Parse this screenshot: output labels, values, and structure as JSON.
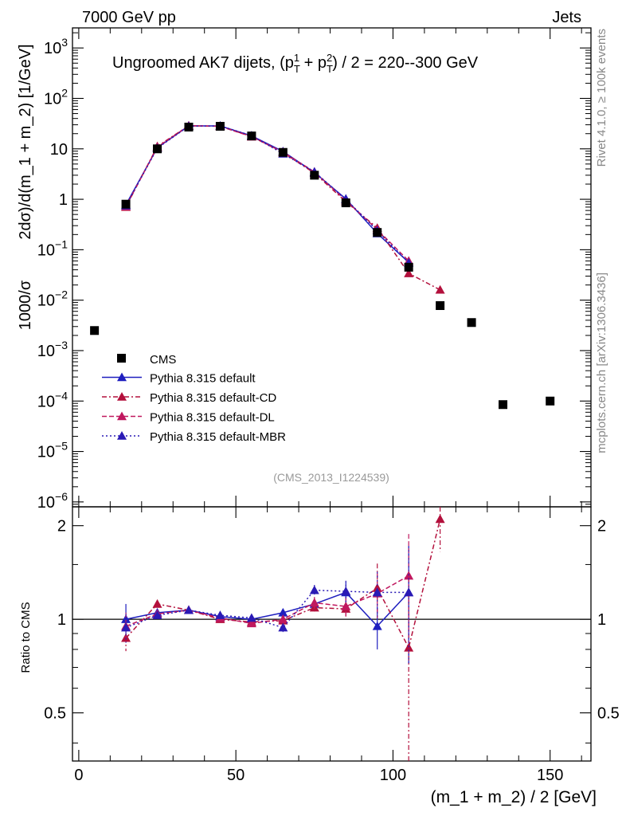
{
  "header": {
    "left_label": "7000 GeV pp",
    "right_label": "Jets"
  },
  "side_labels": {
    "rivet": "Rivet 4.1.0, ≥ 100k events",
    "mcplots": "mcplots.cern.ch [arXiv:1306.3436]"
  },
  "chart_data": {
    "type": "scatter",
    "title": "Ungroomed AK7 dijets, (p_T^1 + p_T^2) / 2 = 220--300 GeV",
    "title_parts": {
      "prefix": "Ungroomed AK7 dijets, (p",
      "sub1": "T",
      "sup1": "1",
      "plus": " + p",
      "sub2": "T",
      "sup2": "2",
      "suffix": ") / 2 = 220--300 GeV"
    },
    "analysis_id": "(CMS_2013_I1224539)",
    "ylabel": "1000/σ   2dσ)/d(m_1 + m_2) [1/GeV]",
    "ylabel_parts": {
      "left": "1000/σ",
      "right": "2dσ)/d(m_1 + m_2) [1/GeV]"
    },
    "xlabel": "(m_1 + m_2) / 2 [GeV]",
    "ratio_ylabel": "Ratio to CMS",
    "xlim": [
      -2,
      163
    ],
    "ylim": [
      8e-07,
      2500
    ],
    "ratio_ylim": [
      0.35,
      2.3
    ],
    "x_ticks": [
      "0",
      "50",
      "100",
      "150"
    ],
    "y_ticks": [
      "10^-6",
      "10^-5",
      "10^-4",
      "10^-3",
      "10^-2",
      "10^-1",
      "1",
      "10",
      "10^2",
      "10^3"
    ],
    "ratio_ticks": [
      "0.5",
      "1",
      "2"
    ],
    "legend_position": "lower-left",
    "reference": {
      "name": "CMS",
      "color": "#000000",
      "x": [
        5,
        15,
        25,
        35,
        45,
        55,
        65,
        75,
        85,
        95,
        105,
        115,
        125,
        135,
        150
      ],
      "y": [
        0.0025,
        0.8,
        10.0,
        27.0,
        28.0,
        18.0,
        8.5,
        3.0,
        0.85,
        0.22,
        0.045,
        0.0078,
        0.0036,
        8.5e-05,
        0.0001
      ]
    },
    "series": [
      {
        "name": "Pythia 8.315 default",
        "color": "#1f1fbf",
        "dash": "",
        "x": [
          15,
          25,
          35,
          45,
          55,
          65,
          75,
          85,
          95,
          105
        ],
        "y": [
          0.78,
          10.5,
          28.5,
          28.5,
          18.1,
          8.9,
          3.4,
          1.02,
          0.21,
          0.056
        ],
        "ratio": [
          1.0,
          1.05,
          1.07,
          1.02,
          1.0,
          1.05,
          1.12,
          1.22,
          0.95,
          1.22
        ],
        "ratio_err": [
          0.12,
          0.02,
          0.02,
          0.02,
          0.02,
          0.03,
          0.05,
          0.1,
          0.15,
          0.5
        ]
      },
      {
        "name": "Pythia 8.315 default-CD",
        "color": "#b3103c",
        "dash": "6,3,2,3",
        "x": [
          15,
          25,
          35,
          45,
          55,
          65,
          75,
          85,
          95,
          105,
          115
        ],
        "y": [
          0.7,
          11.2,
          28.8,
          28.0,
          17.6,
          8.4,
          3.3,
          0.9,
          0.27,
          0.034,
          0.016
        ],
        "ratio": [
          0.87,
          1.12,
          1.07,
          1.0,
          0.98,
          0.99,
          1.09,
          1.08,
          1.26,
          0.81,
          2.1
        ],
        "ratio_err": [
          0.08,
          0.03,
          0.02,
          0.02,
          0.02,
          0.03,
          0.04,
          0.06,
          0.25,
          0.55,
          0.45
        ]
      },
      {
        "name": "Pythia 8.315 default-DL",
        "color": "#c0185f",
        "dash": "6,3",
        "x": [
          15,
          25,
          35,
          45,
          55,
          65,
          75,
          85,
          95,
          105
        ],
        "y": [
          0.72,
          10.8,
          28.8,
          28.0,
          17.4,
          8.6,
          3.5,
          0.95,
          0.25,
          0.06
        ],
        "ratio": [
          0.95,
          1.04,
          1.07,
          1.01,
          0.97,
          1.0,
          1.13,
          1.1,
          1.21,
          1.38
        ],
        "ratio_err": [
          0.1,
          0.02,
          0.02,
          0.02,
          0.02,
          0.03,
          0.05,
          0.08,
          0.2,
          0.5
        ]
      },
      {
        "name": "Pythia 8.315 default-MBR",
        "color": "#2a1ab5",
        "dash": "2,3",
        "x": [
          15,
          25,
          35,
          45,
          55,
          65,
          75,
          85,
          95,
          105
        ],
        "y": [
          0.75,
          10.3,
          28.2,
          28.5,
          18.3,
          8.0,
          3.5,
          1.0,
          0.24,
          0.055
        ],
        "ratio": [
          0.94,
          1.03,
          1.07,
          1.03,
          1.01,
          0.94,
          1.24,
          1.23,
          1.22,
          1.22
        ],
        "ratio_err": [
          0.1,
          0.02,
          0.02,
          0.02,
          0.02,
          0.03,
          0.05,
          0.1,
          0.2,
          0.5
        ]
      }
    ]
  }
}
